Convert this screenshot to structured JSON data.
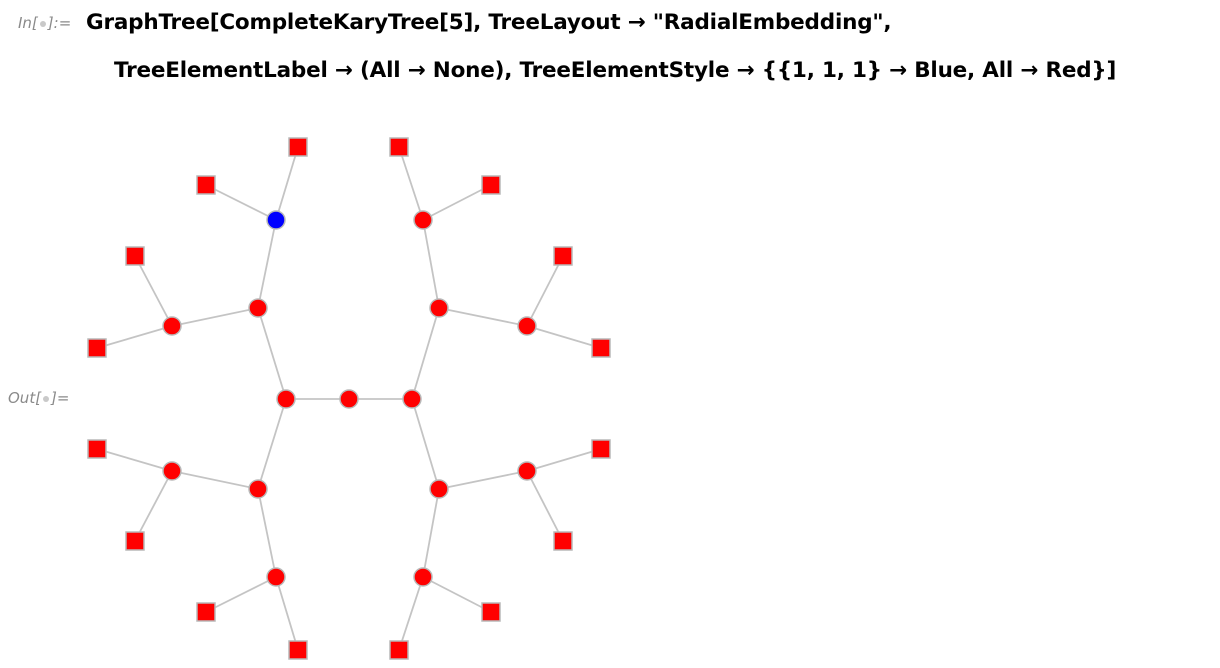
{
  "input": {
    "label_prefix": "In[",
    "label_suffix": "]:=",
    "code_lines": [
      "GraphTree[CompleteKaryTree[5], TreeLayout → \"RadialEmbedding\",",
      "TreeElementLabel → (All → None), TreeElementStyle → {{1, 1, 1} → Blue, All → Red}]"
    ]
  },
  "output": {
    "label_prefix": "Out[",
    "label_suffix": "]=",
    "graph": {
      "tree": "CompleteKaryTree[5]",
      "layout": "RadialEmbedding",
      "highlighted_path": [
        1,
        1,
        1
      ],
      "colors": {
        "default_fill": "#ff0000",
        "highlight_fill": "#0000ff",
        "edge": "#c4c4c4",
        "node_outline": "#b8b8b8"
      },
      "node_shapes": {
        "internal": "circle",
        "leaf": "square"
      },
      "leaf_count": 16,
      "internal_count": 15
    }
  }
}
